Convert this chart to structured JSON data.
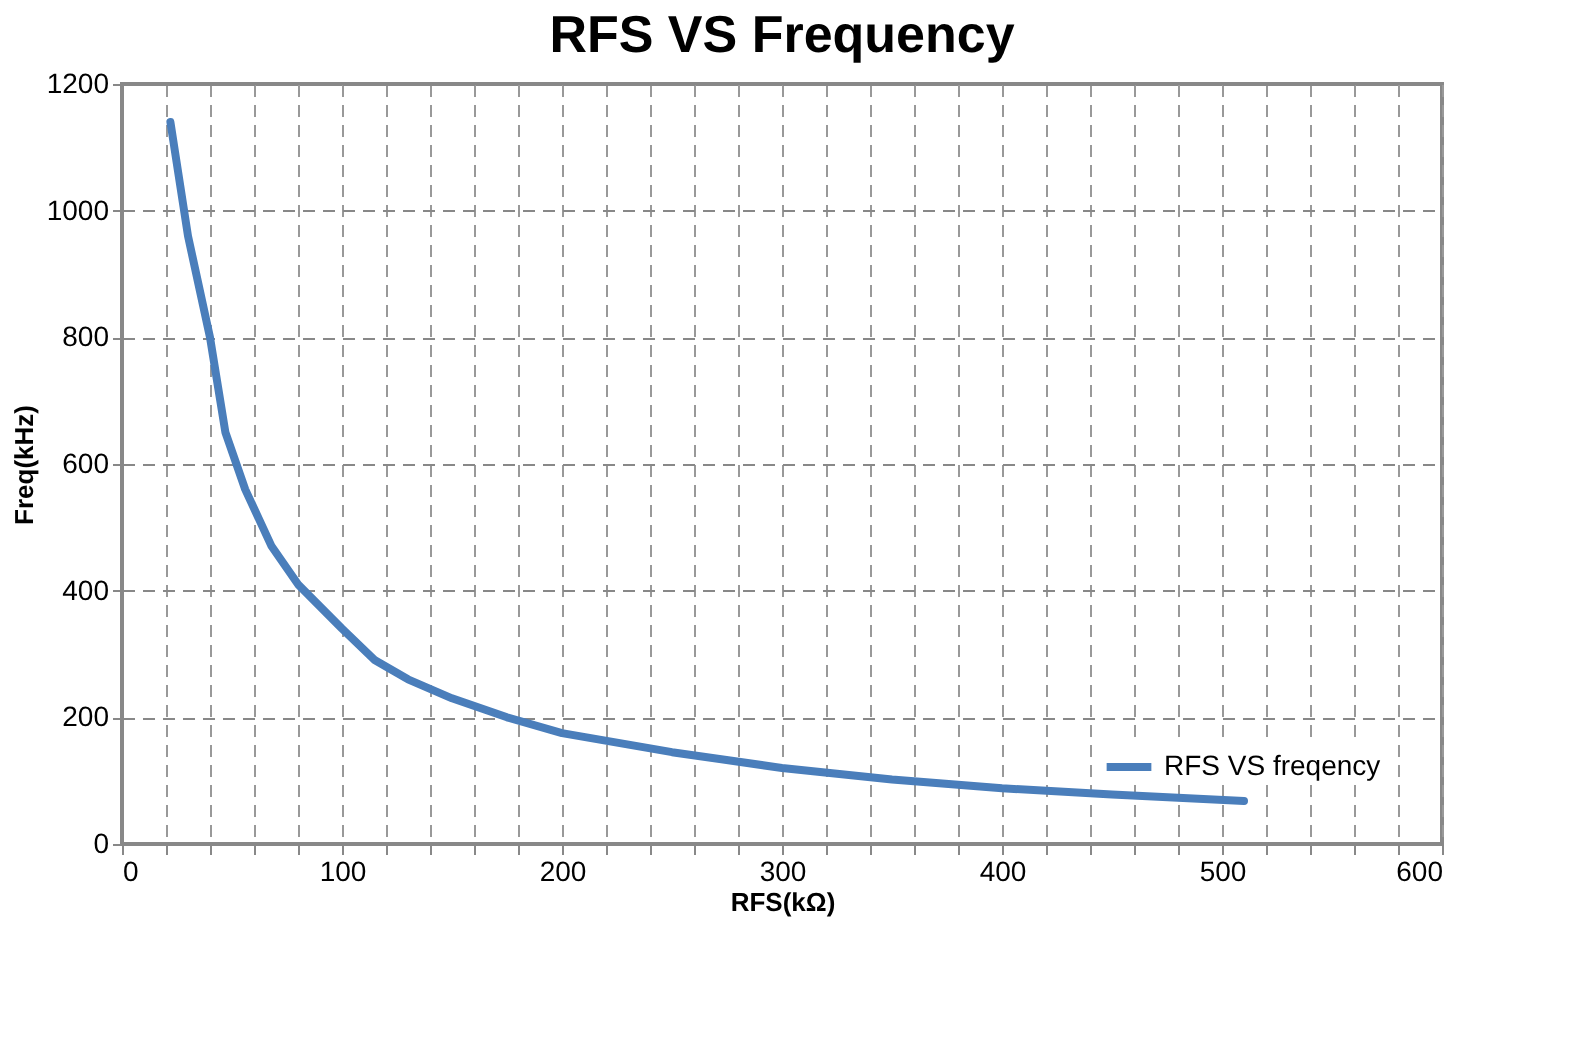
{
  "chart_data": {
    "type": "line",
    "title": "RFS VS Frequency",
    "xlabel": "RFS(kΩ)",
    "ylabel": "Freq(kHz)",
    "x": [
      22,
      30,
      40,
      47,
      56,
      68,
      80,
      100,
      115,
      130,
      150,
      175,
      200,
      250,
      300,
      350,
      400,
      450,
      510
    ],
    "series": [
      {
        "name": "RFS VS freqency",
        "color": "#4a7ebb",
        "values": [
          1140,
          960,
          800,
          650,
          560,
          470,
          410,
          340,
          290,
          260,
          230,
          200,
          175,
          145,
          120,
          102,
          88,
          78,
          68
        ]
      }
    ],
    "xlim": [
      0,
      600
    ],
    "ylim": [
      0,
      1200
    ],
    "xticks": [
      0,
      {
        "value": 20,
        "label": null
      },
      {
        "value": 40,
        "label": null
      },
      {
        "value": 60,
        "label": null
      },
      {
        "value": 80,
        "label": null
      },
      100,
      {
        "value": 120,
        "label": null
      },
      {
        "value": 140,
        "label": null
      },
      {
        "value": 160,
        "label": null
      },
      {
        "value": 180,
        "label": null
      },
      200,
      {
        "value": 220,
        "label": null
      },
      {
        "value": 240,
        "label": null
      },
      {
        "value": 260,
        "label": null
      },
      {
        "value": 280,
        "label": null
      },
      300,
      {
        "value": 320,
        "label": null
      },
      {
        "value": 340,
        "label": null
      },
      {
        "value": 360,
        "label": null
      },
      {
        "value": 380,
        "label": null
      },
      400,
      {
        "value": 420,
        "label": null
      },
      {
        "value": 440,
        "label": null
      },
      {
        "value": 460,
        "label": null
      },
      {
        "value": 480,
        "label": null
      },
      500,
      {
        "value": 520,
        "label": null
      },
      {
        "value": 540,
        "label": null
      },
      {
        "value": 560,
        "label": null
      },
      {
        "value": 580,
        "label": null
      },
      600
    ],
    "yticks": [
      0,
      200,
      400,
      600,
      800,
      1000,
      1200
    ],
    "grid": true,
    "legend": "bottom right",
    "marker": "none",
    "line_style": "solid"
  }
}
